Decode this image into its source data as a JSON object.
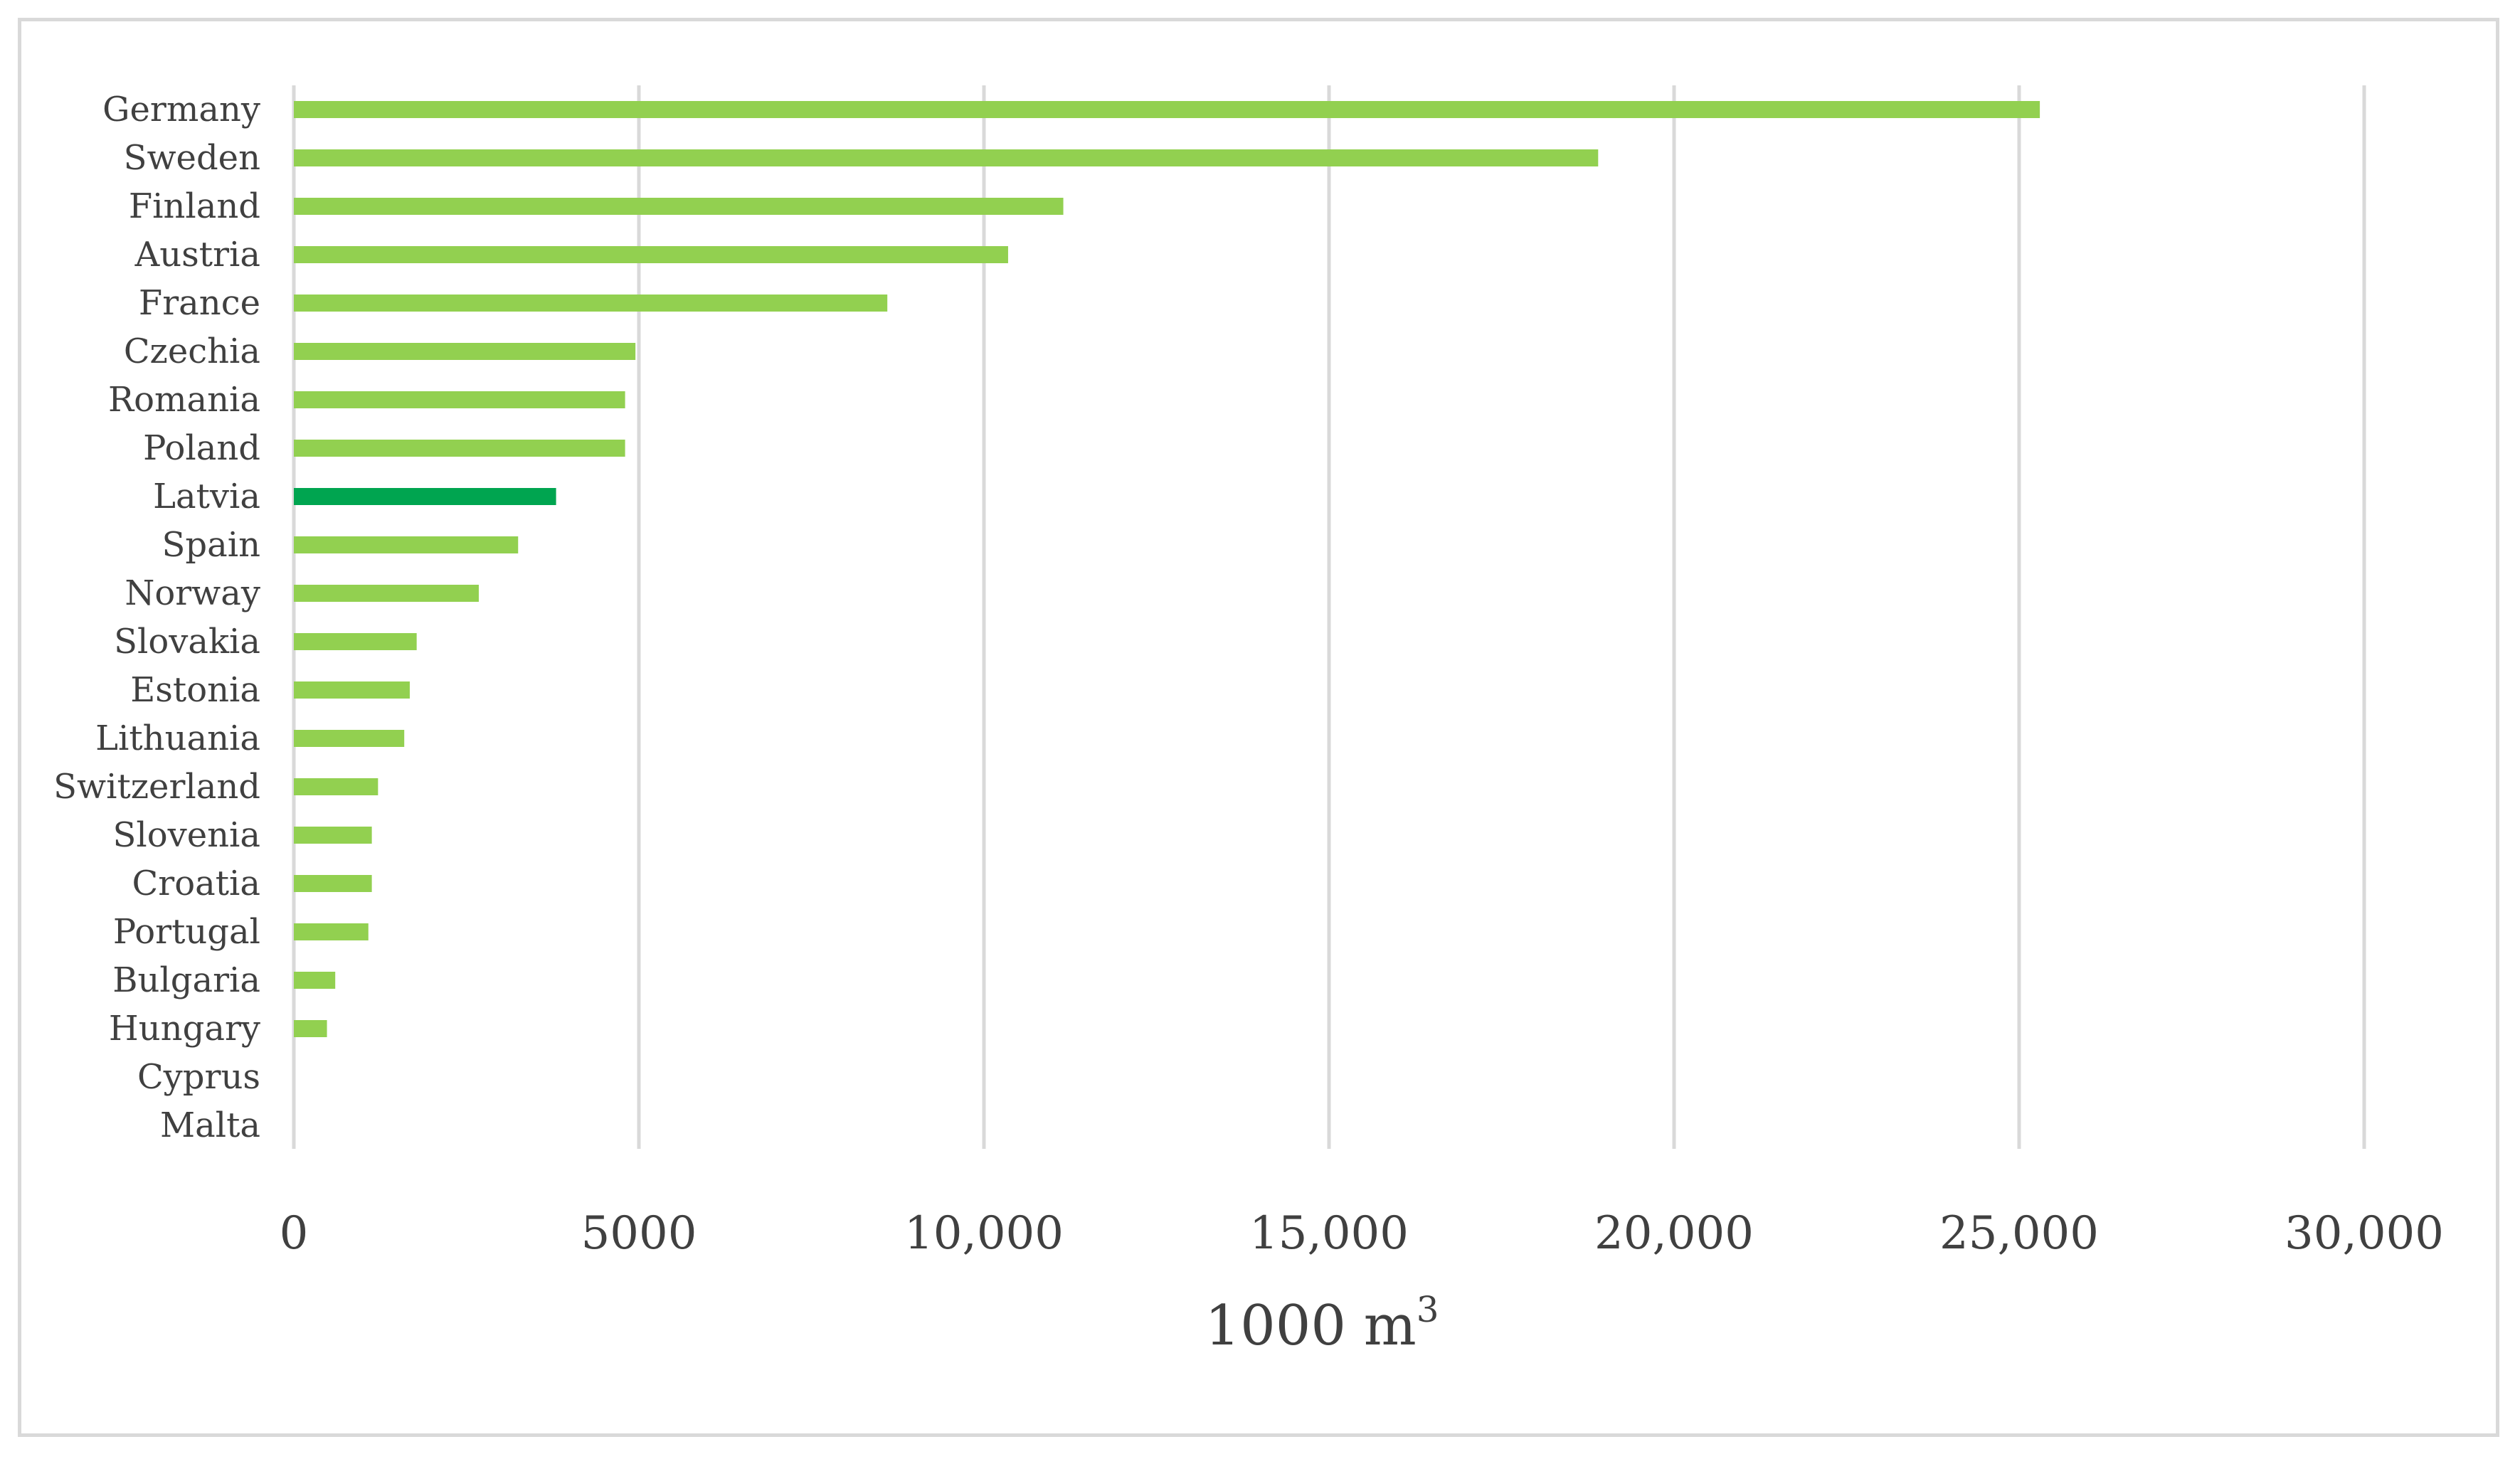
{
  "chart_data": {
    "type": "bar",
    "orientation": "horizontal",
    "categories": [
      "Germany",
      "Sweden",
      "Finland",
      "Austria",
      "France",
      "Czechia",
      "Romania",
      "Poland",
      "Latvia",
      "Spain",
      "Norway",
      "Slovakia",
      "Estonia",
      "Lithuania",
      "Switzerland",
      "Slovenia",
      "Croatia",
      "Portugal",
      "Bulgaria",
      "Hungary",
      "Cyprus",
      "Malta"
    ],
    "values": [
      25300,
      18900,
      11150,
      10350,
      8600,
      4950,
      4800,
      4800,
      3800,
      3250,
      2680,
      1780,
      1680,
      1600,
      1220,
      1130,
      1130,
      1080,
      600,
      480,
      0,
      0
    ],
    "highlight": "Latvia",
    "colors": {
      "bar": "#92d050",
      "highlight": "#00a550",
      "grid": "#d9d9d9"
    },
    "xlabel": "1000 m",
    "xlabel_sup": "3",
    "ylabel": "",
    "xlim": [
      0,
      30000
    ],
    "xticks": [
      0,
      5000,
      10000,
      15000,
      20000,
      25000,
      30000
    ],
    "xtick_labels": [
      "0",
      "5000",
      "10,000",
      "15,000",
      "20,000",
      "25,000",
      "30,000"
    ],
    "grid": "vertical",
    "legend": "none"
  }
}
